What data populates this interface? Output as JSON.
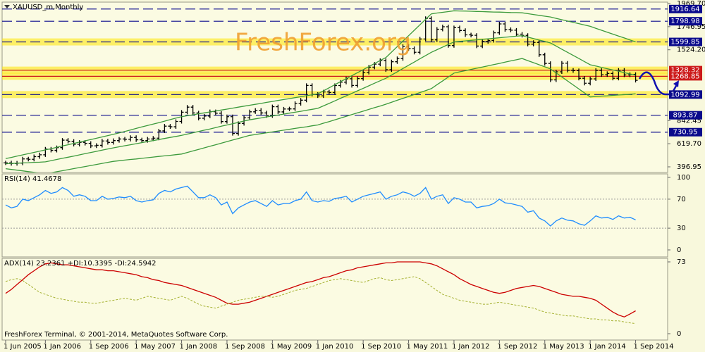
{
  "chart_data": [
    {
      "type": "price",
      "title": "XAUUSD_m,Monthly",
      "watermark": "FreshForex.org",
      "categories": [
        "1 Jun 2005",
        null,
        null,
        null,
        null,
        null,
        null,
        "1 Jan 2006",
        null,
        null,
        null,
        null,
        null,
        null,
        null,
        "1 Sep 2006",
        null,
        null,
        null,
        null,
        null,
        null,
        null,
        "1 May 2007",
        null,
        null,
        null,
        null,
        null,
        null,
        null,
        "1 Jan 2008",
        null,
        null,
        null,
        null,
        null,
        null,
        null,
        "1 Sep 2008",
        null,
        null,
        null,
        null,
        null,
        null,
        null,
        "1 May 2009",
        null,
        null,
        null,
        null,
        null,
        null,
        null,
        "1 Jan 2010",
        null,
        null,
        null,
        null,
        null,
        null,
        null,
        "1 Sep 2010",
        null,
        null,
        null,
        null,
        null,
        null,
        null,
        "1 May 2011",
        null,
        null,
        null,
        null,
        null,
        null,
        null,
        "1 Jan 2012",
        null,
        null,
        null,
        null,
        null,
        null,
        null,
        "1 Sep 2012",
        null,
        null,
        null,
        null,
        null,
        null,
        null,
        "1 May 2013",
        null,
        null,
        null,
        null,
        null,
        null,
        null,
        "1 Jan 2014",
        null,
        null,
        null,
        null,
        null,
        null,
        null,
        "1 Sep 2014"
      ],
      "series": [
        {
          "type": "bars",
          "color": "#000000",
          "values": [
            435,
            429,
            433,
            473,
            470,
            495,
            513,
            568,
            556,
            582,
            654,
            643,
            614,
            633,
            623,
            599,
            604,
            646,
            632,
            650,
            665,
            662,
            680,
            657,
            650,
            665,
            673,
            743,
            789,
            783,
            834,
            923,
            972,
            916,
            865,
            886,
            928,
            913,
            833,
            880,
            718,
            815,
            869,
            927,
            942,
            916,
            890,
            976,
            926,
            954,
            955,
            1007,
            1039,
            1181,
            1095,
            1081,
            1118,
            1113,
            1180,
            1212,
            1245,
            1181,
            1247,
            1307,
            1357,
            1386,
            1421,
            1332,
            1409,
            1439,
            1556,
            1536,
            1500,
            1628,
            1826,
            1620,
            1722,
            1746,
            1565,
            1737,
            1710,
            1668,
            1664,
            1560,
            1604,
            1614,
            1688,
            1773,
            1719,
            1713,
            1675,
            1663,
            1578,
            1595,
            1476,
            1393,
            1234,
            1312,
            1395,
            1327,
            1323,
            1250,
            1202,
            1244,
            1326,
            1284,
            1296,
            1250,
            1327,
            1282,
            1287,
            1230
          ]
        },
        {
          "type": "line",
          "color": "#3c9a3c",
          "values": [
            476,
            488,
            500,
            512,
            524,
            536,
            548,
            560,
            572,
            585,
            598,
            610,
            622,
            635,
            648,
            660,
            672,
            685,
            698,
            710,
            724,
            738,
            752,
            767,
            781,
            795,
            809,
            823,
            837,
            852,
            866,
            880,
            889,
            898,
            908,
            917,
            926,
            935,
            944,
            953,
            962,
            972,
            981,
            990,
            999,
            1008,
            1018,
            1027,
            1036,
            1045,
            1054,
            1063,
            1072,
            1082,
            1091,
            1100,
            1129,
            1158,
            1188,
            1217,
            1246,
            1275,
            1304,
            1333,
            1362,
            1392,
            1421,
            1450,
            1502,
            1555,
            1608,
            1660,
            1712,
            1765,
            1818,
            1870,
            1878,
            1885,
            1892,
            1900,
            1898,
            1897,
            1895,
            1893,
            1892,
            1890,
            1888,
            1887,
            1885,
            1883,
            1882,
            1880,
            1872,
            1864,
            1856,
            1848,
            1840,
            1827,
            1814,
            1801,
            1789,
            1776,
            1763,
            1750,
            1731,
            1712,
            1694,
            1675,
            1656,
            1638,
            1619,
            1600
          ]
        },
        {
          "type": "line",
          "color": "#3c9a3c",
          "values": [
            427,
            430,
            432,
            435,
            437,
            440,
            442,
            445,
            456,
            468,
            479,
            490,
            501,
            512,
            524,
            535,
            546,
            558,
            569,
            580,
            590,
            600,
            610,
            620,
            630,
            640,
            650,
            660,
            670,
            680,
            690,
            700,
            712,
            725,
            738,
            750,
            762,
            775,
            788,
            800,
            812,
            825,
            838,
            850,
            859,
            868,
            878,
            887,
            896,
            905,
            914,
            923,
            932,
            942,
            951,
            960,
            984,
            1008,
            1032,
            1057,
            1081,
            1105,
            1129,
            1153,
            1177,
            1202,
            1226,
            1250,
            1281,
            1312,
            1344,
            1375,
            1406,
            1438,
            1469,
            1500,
            1525,
            1550,
            1575,
            1600,
            1605,
            1610,
            1615,
            1620,
            1625,
            1630,
            1635,
            1640,
            1645,
            1650,
            1655,
            1660,
            1646,
            1632,
            1618,
            1604,
            1590,
            1560,
            1530,
            1500,
            1470,
            1440,
            1410,
            1380,
            1368,
            1355,
            1342,
            1330,
            1318,
            1305,
            1292,
            1280
          ]
        },
        {
          "type": "line",
          "color": "#3c9a3c",
          "values": [
            379,
            372,
            365,
            358,
            351,
            344,
            337,
            330,
            340,
            350,
            360,
            370,
            380,
            390,
            400,
            410,
            420,
            430,
            440,
            450,
            456,
            462,
            468,
            473,
            479,
            485,
            491,
            497,
            503,
            508,
            514,
            520,
            535,
            550,
            565,
            580,
            595,
            610,
            625,
            640,
            655,
            670,
            685,
            700,
            708,
            717,
            725,
            733,
            742,
            750,
            758,
            767,
            775,
            783,
            792,
            800,
            817,
            833,
            850,
            867,
            883,
            900,
            917,
            933,
            950,
            967,
            983,
            1000,
            1019,
            1038,
            1056,
            1075,
            1094,
            1112,
            1131,
            1150,
            1188,
            1225,
            1262,
            1300,
            1312,
            1323,
            1335,
            1347,
            1358,
            1370,
            1382,
            1393,
            1405,
            1417,
            1428,
            1440,
            1420,
            1400,
            1380,
            1360,
            1340,
            1301,
            1263,
            1224,
            1186,
            1147,
            1109,
            1070,
            1074,
            1078,
            1081,
            1085,
            1089,
            1092,
            1096,
            1100
          ]
        }
      ],
      "ylim": [
        396.95,
        1969.7
      ],
      "yticks": [
        396.95,
        {
          "value": 619.7,
          "label": "619.70"
        },
        842.45,
        {
          "value": 1524.2,
          "label": "1524.20"
        },
        1746.95,
        {
          "value": 1969.7,
          "label": "1969.70"
        }
      ],
      "hlines": [
        {
          "value": 1916.64,
          "color": "#0a0a8c"
        },
        {
          "value": 1798.98,
          "color": "#0a0a8c"
        },
        {
          "value": 1599.85,
          "color": "#0a0a8c",
          "highlight": true
        },
        {
          "value": 1328.32,
          "color": "#cc1a1a",
          "highlight": true
        },
        {
          "value": 1268.85,
          "color": "#cc1a1a",
          "highlight": true
        },
        {
          "value": 1092.99,
          "color": "#0a0a8c",
          "highlight": true
        },
        {
          "value": 893.87,
          "color": "#0a0a8c"
        },
        {
          "value": 730.95,
          "color": "#0a0a8c"
        }
      ]
    },
    {
      "type": "line",
      "title": "RSI(14) 41.4678",
      "series": [
        {
          "color": "#1e8cff",
          "values": [
            62,
            58,
            60,
            70,
            68,
            72,
            76,
            82,
            78,
            80,
            86,
            82,
            74,
            76,
            74,
            68,
            68,
            74,
            70,
            71,
            73,
            72,
            74,
            68,
            66,
            68,
            69,
            78,
            82,
            80,
            84,
            86,
            88,
            80,
            72,
            72,
            76,
            72,
            62,
            66,
            50,
            58,
            62,
            66,
            68,
            64,
            60,
            68,
            62,
            64,
            64,
            68,
            70,
            80,
            68,
            66,
            68,
            67,
            71,
            72,
            74,
            66,
            70,
            74,
            76,
            78,
            80,
            70,
            74,
            76,
            80,
            78,
            74,
            78,
            86,
            70,
            74,
            76,
            64,
            72,
            70,
            66,
            66,
            58,
            60,
            61,
            64,
            70,
            65,
            64,
            62,
            60,
            52,
            54,
            44,
            40,
            33,
            40,
            44,
            41,
            40,
            36,
            34,
            40,
            47,
            44,
            45,
            42,
            47,
            44,
            45,
            41.4678
          ]
        }
      ],
      "ylim": [
        0,
        100
      ],
      "yticks": [
        0,
        30,
        70,
        100
      ],
      "grid": true
    },
    {
      "type": "line",
      "title": "ADX(14) 23.2361 +DI:10.3395 -DI:24.5942",
      "series": [
        {
          "color": "#cc0000",
          "values": [
            41,
            45,
            50,
            55,
            60,
            64,
            68,
            71,
            72,
            71,
            70,
            70,
            69,
            68,
            67,
            66,
            65,
            65,
            64,
            64,
            63,
            62,
            61,
            60,
            58,
            57,
            55,
            54,
            52,
            51,
            50,
            49,
            47,
            45,
            43,
            41,
            39,
            37,
            34,
            31,
            30,
            30,
            31,
            32,
            34,
            36,
            38,
            40,
            42,
            44,
            46,
            48,
            50,
            52,
            53,
            55,
            57,
            58,
            60,
            62,
            64,
            65,
            67,
            68,
            69,
            70,
            71,
            72,
            72,
            73,
            73,
            73,
            73,
            73,
            72,
            71,
            69,
            66,
            63,
            60,
            56,
            53,
            50,
            48,
            46,
            44,
            42,
            41,
            42,
            44,
            46,
            47,
            48,
            49,
            48,
            46,
            44,
            42,
            40,
            39,
            38,
            38,
            37,
            36,
            34,
            30,
            26,
            22,
            19,
            17,
            20,
            23.2361
          ]
        },
        {
          "color": "#a4b030",
          "dashed": true,
          "values": [
            53,
            55,
            56,
            54,
            50,
            46,
            42,
            40,
            38,
            36,
            35,
            34,
            33,
            32,
            32,
            31,
            31,
            32,
            33,
            34,
            35,
            36,
            35,
            34,
            36,
            38,
            37,
            36,
            35,
            34,
            36,
            38,
            36,
            33,
            30,
            28,
            27,
            26,
            28,
            30,
            32,
            34,
            35,
            36,
            37,
            38,
            38,
            37,
            38,
            40,
            42,
            44,
            45,
            46,
            48,
            50,
            52,
            54,
            55,
            56,
            55,
            54,
            53,
            52,
            54,
            56,
            57,
            55,
            54,
            55,
            56,
            57,
            58,
            56,
            52,
            48,
            44,
            40,
            38,
            36,
            34,
            33,
            32,
            31,
            30,
            30,
            31,
            32,
            31,
            30,
            29,
            28,
            27,
            26,
            24,
            22,
            21,
            20,
            19,
            18,
            18,
            17,
            16,
            15,
            15,
            14,
            14,
            13,
            13,
            12,
            11,
            10.3395
          ]
        }
      ],
      "ylim": [
        0,
        73
      ],
      "yticks": [
        0,
        73
      ]
    }
  ],
  "footer": "FreshForex Terminal, © 2001-2014, MetaQuotes Software Corp."
}
